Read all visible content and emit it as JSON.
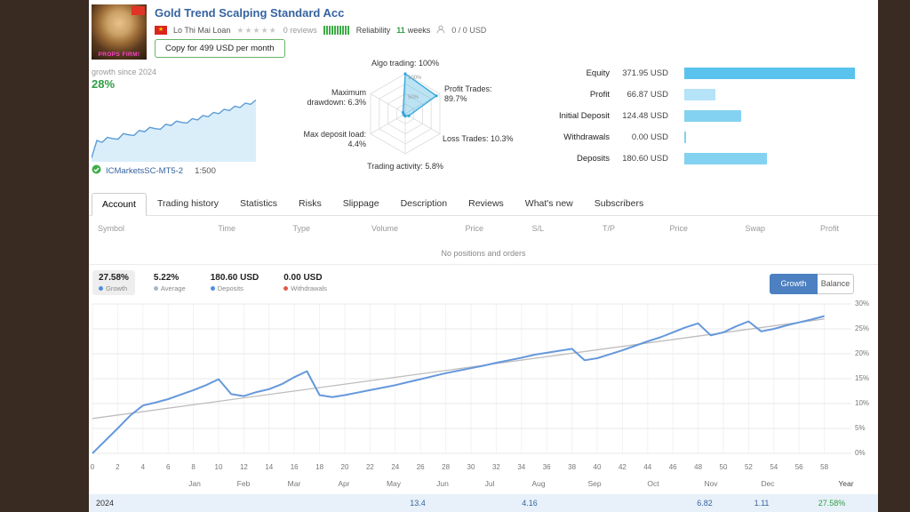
{
  "header": {
    "title": "Gold Trend Scalping Standard Acc",
    "author": "Lo Thi Mai Loan",
    "stars": "★★★★★",
    "reviews": "0 reviews",
    "reliability_label": "Reliability",
    "weeks_value": "11",
    "weeks_label": "weeks",
    "subscribers": "0 / 0 USD",
    "copy_button": "Copy for 499 USD per month",
    "avatar_caption": "PROPS FIRM!"
  },
  "growth_summary": {
    "label": "growth since 2024",
    "value": "28%",
    "broker": "ICMarketsSC-MT5-2",
    "leverage": "1:500",
    "spark": [
      2,
      30,
      27,
      35,
      33,
      32,
      41,
      39,
      38,
      46,
      44,
      51,
      49,
      48,
      56,
      54,
      61,
      59,
      58,
      65,
      63,
      70,
      68,
      75,
      73,
      80,
      78,
      85,
      83,
      90,
      88,
      95
    ]
  },
  "radar": {
    "labels": {
      "top": "Algo trading: 100%",
      "right_top_l1": "Profit Trades:",
      "right_top_l2": "89.7%",
      "right_bottom": "Loss Trades: 10.3%",
      "bottom": "Trading activity: 5.8%",
      "left_bottom_l1": "Max deposit load:",
      "left_bottom_l2": "4.4%",
      "left_top_l1": "Maximum",
      "left_top_l2": "drawdown: 6.3%"
    },
    "ring_labels": [
      "100%",
      "50%"
    ],
    "axes": [
      "Algo trading",
      "Profit Trades",
      "Loss Trades",
      "Trading activity",
      "Max deposit load",
      "Maximum drawdown"
    ],
    "values": [
      100,
      89.7,
      10.3,
      5.8,
      4.4,
      6.3
    ]
  },
  "account_stats": [
    {
      "label": "Equity",
      "value": "371.95 USD",
      "fraction": 1.0,
      "color": "#59c3ee"
    },
    {
      "label": "Profit",
      "value": "66.87 USD",
      "fraction": 0.18,
      "color": "#b5e3f7"
    },
    {
      "label": "Initial Deposit",
      "value": "124.48 USD",
      "fraction": 0.335,
      "color": "#84d2f1"
    },
    {
      "label": "Withdrawals",
      "value": "0.00 USD",
      "fraction": 0.012,
      "color": "#84d2f1"
    },
    {
      "label": "Deposits",
      "value": "180.60 USD",
      "fraction": 0.486,
      "color": "#84d2f1"
    }
  ],
  "tabs": [
    {
      "label": "Account",
      "active": true
    },
    {
      "label": "Trading history",
      "active": false
    },
    {
      "label": "Statistics",
      "active": false
    },
    {
      "label": "Risks",
      "active": false
    },
    {
      "label": "Slippage",
      "active": false
    },
    {
      "label": "Description",
      "active": false
    },
    {
      "label": "Reviews",
      "active": false
    },
    {
      "label": "What's new",
      "active": false
    },
    {
      "label": "Subscribers",
      "active": false
    }
  ],
  "positions_table": {
    "columns": [
      "Symbol",
      "Time",
      "Type",
      "Volume",
      "Price",
      "S/L",
      "T/P",
      "Price",
      "Swap",
      "Profit"
    ],
    "empty_message": "No positions and orders"
  },
  "chart_stats": [
    {
      "value": "27.58%",
      "label": "Growth",
      "dot": "#4f8fde",
      "selected": true
    },
    {
      "value": "5.22%",
      "label": "Average",
      "dot": "#a9b7c6",
      "selected": false
    },
    {
      "value": "180.60 USD",
      "label": "Deposits",
      "dot": "#4f8fde",
      "selected": false
    },
    {
      "value": "0.00 USD",
      "label": "Withdrawals",
      "dot": "#e05b4b",
      "selected": false
    }
  ],
  "chart_toggle": [
    {
      "label": "Growth",
      "active": true
    },
    {
      "label": "Balance",
      "active": false
    }
  ],
  "chart_data": {
    "type": "line",
    "ylim": [
      0,
      30
    ],
    "ytick_step": 5,
    "yticks": [
      "0%",
      "5%",
      "10%",
      "15%",
      "20%",
      "25%",
      "30%"
    ],
    "xticks": [
      0,
      2,
      4,
      6,
      8,
      10,
      12,
      14,
      16,
      18,
      20,
      22,
      24,
      26,
      28,
      30,
      32,
      34,
      36,
      38,
      40,
      42,
      44,
      46,
      48,
      50,
      52,
      54,
      56,
      58
    ],
    "series": [
      {
        "name": "Growth",
        "color": "#6598dc",
        "values": [
          0,
          2.5,
          5,
          7.6,
          9.6,
          10.2,
          10.9,
          11.8,
          12.7,
          13.7,
          14.9,
          11.9,
          11.5,
          12.3,
          12.9,
          13.9,
          15.3,
          16.5,
          11.7,
          11.3,
          11.7,
          12.2,
          12.7,
          13.2,
          13.7,
          14.3,
          14.9,
          15.5,
          16.1,
          16.6,
          17.1,
          17.6,
          18.2,
          18.7,
          19.2,
          19.8,
          20.2,
          20.6,
          21.0,
          18.7,
          19.1,
          19.9,
          20.7,
          21.6,
          22.5,
          23.3,
          24.3,
          25.3,
          26.1,
          23.7,
          24.3,
          25.5,
          26.5,
          24.5,
          25.0,
          25.7,
          26.3,
          26.9,
          27.58
        ]
      },
      {
        "name": "Trend",
        "color": "#bdbdbd",
        "endpoints": [
          7.0,
          27.0
        ]
      }
    ],
    "months": [
      {
        "label": "Jan",
        "center": 119
      },
      {
        "label": "Feb",
        "center": 174
      },
      {
        "label": "Mar",
        "center": 231
      },
      {
        "label": "Apr",
        "center": 287
      },
      {
        "label": "May",
        "center": 343
      },
      {
        "label": "Jun",
        "center": 398
      },
      {
        "label": "Jul",
        "center": 451
      },
      {
        "label": "Aug",
        "center": 506
      },
      {
        "label": "Sep",
        "center": 569
      },
      {
        "label": "Oct",
        "center": 635
      },
      {
        "label": "Nov",
        "center": 700
      },
      {
        "label": "Dec",
        "center": 764
      },
      {
        "label": "Year",
        "center": 852
      }
    ],
    "footer": {
      "year": "2024",
      "values": [
        {
          "text": "13.4",
          "center": 370
        },
        {
          "text": "4.16",
          "center": 496
        },
        {
          "text": "6.82",
          "center": 693
        },
        {
          "text": "1.11",
          "center": 757
        },
        {
          "text": "27.58%",
          "center": 836,
          "color": "#2f9e44"
        }
      ]
    }
  }
}
